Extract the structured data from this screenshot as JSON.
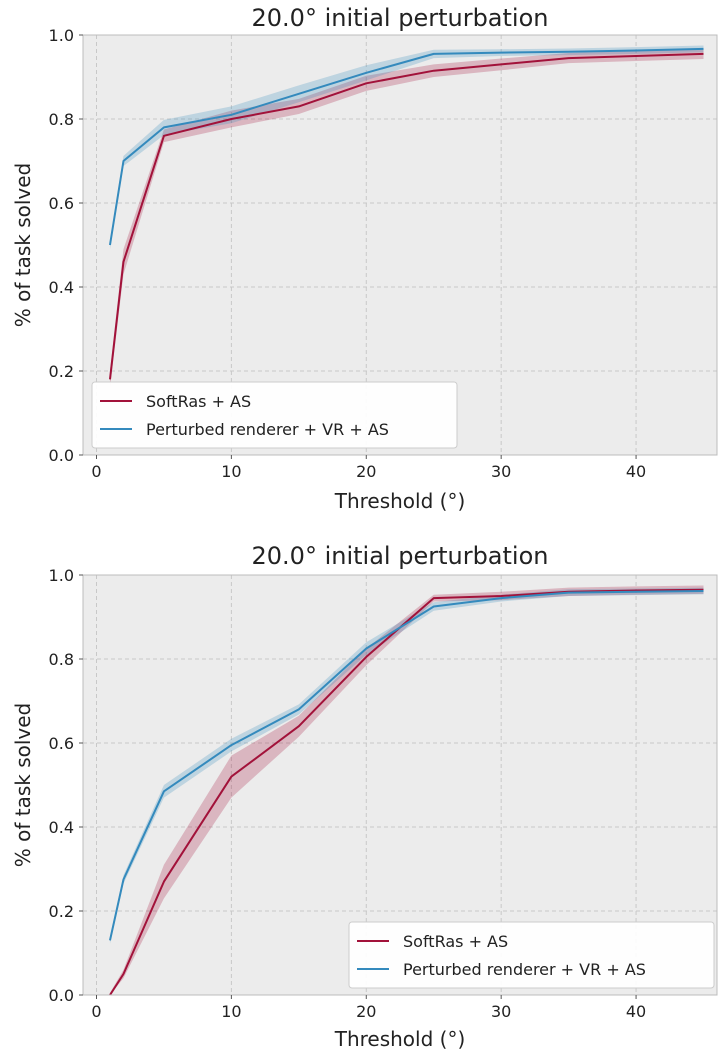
{
  "chart_data": [
    {
      "type": "line",
      "title": "20.0° initial perturbation",
      "xlabel": "Threshold (°)",
      "ylabel": "% of task solved",
      "xlim": [
        -1,
        46
      ],
      "ylim": [
        0,
        1
      ],
      "xticks": [
        0,
        10,
        20,
        30,
        40
      ],
      "yticks": [
        "0.0",
        "0.2",
        "0.4",
        "0.6",
        "0.8",
        "1.0"
      ],
      "grid": true,
      "legend_position": "lower-left",
      "series": [
        {
          "name": "SoftRas + AS",
          "color": "#a2123a",
          "x": [
            1,
            2,
            5,
            10,
            15,
            20,
            25,
            30,
            35,
            40,
            45
          ],
          "y": [
            0.18,
            0.46,
            0.76,
            0.8,
            0.83,
            0.885,
            0.915,
            0.93,
            0.945,
            0.95,
            0.955
          ],
          "band": [
            0.02,
            0.03,
            0.015,
            0.02,
            0.018,
            0.018,
            0.015,
            0.014,
            0.012,
            0.012,
            0.012
          ]
        },
        {
          "name": "Perturbed renderer + VR + AS",
          "color": "#348abd",
          "x": [
            1,
            2,
            5,
            10,
            15,
            20,
            25,
            30,
            35,
            40,
            45
          ],
          "y": [
            0.5,
            0.7,
            0.78,
            0.81,
            0.86,
            0.91,
            0.955,
            0.958,
            0.96,
            0.963,
            0.967
          ],
          "band": [
            0.01,
            0.012,
            0.018,
            0.02,
            0.02,
            0.018,
            0.01,
            0.008,
            0.008,
            0.008,
            0.008
          ]
        }
      ]
    },
    {
      "type": "line",
      "title": "20.0° initial perturbation",
      "xlabel": "Threshold (°)",
      "ylabel": "% of task solved",
      "xlim": [
        -1,
        46
      ],
      "ylim": [
        0,
        1
      ],
      "xticks": [
        0,
        10,
        20,
        30,
        40
      ],
      "yticks": [
        "0.0",
        "0.2",
        "0.4",
        "0.6",
        "0.8",
        "1.0"
      ],
      "grid": true,
      "legend_position": "lower-right",
      "series": [
        {
          "name": "SoftRas + AS",
          "color": "#a2123a",
          "x": [
            1,
            2,
            5,
            10,
            15,
            20,
            25,
            30,
            35,
            40,
            45
          ],
          "y": [
            0.0,
            0.05,
            0.27,
            0.52,
            0.64,
            0.805,
            0.945,
            0.95,
            0.96,
            0.963,
            0.965
          ],
          "band": [
            0.005,
            0.01,
            0.04,
            0.05,
            0.025,
            0.02,
            0.008,
            0.01,
            0.01,
            0.01,
            0.01
          ]
        },
        {
          "name": "Perturbed renderer + VR + AS",
          "color": "#348abd",
          "x": [
            1,
            2,
            5,
            10,
            15,
            20,
            25,
            30,
            35,
            40,
            45
          ],
          "y": [
            0.13,
            0.275,
            0.485,
            0.595,
            0.68,
            0.825,
            0.925,
            0.945,
            0.958,
            0.96,
            0.962
          ],
          "band": [
            0.008,
            0.01,
            0.015,
            0.015,
            0.012,
            0.015,
            0.01,
            0.008,
            0.008,
            0.008,
            0.008
          ]
        }
      ]
    }
  ]
}
